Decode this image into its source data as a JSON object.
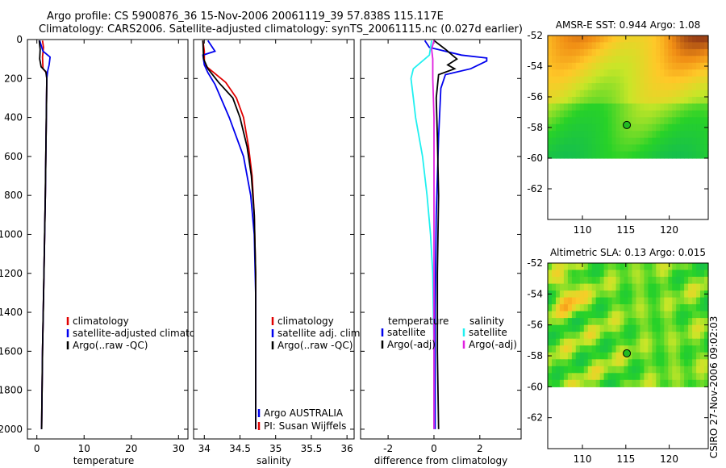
{
  "header": {
    "line1": "Argo profile: CS 5900876_36 15-Nov-2006 20061119_39 57.838S 115.117E",
    "line2": "Climatology: CARS2006. Satellite-adjusted climatology: synTS_20061115.nc (0.027d earlier)"
  },
  "side_label": "CSIRO 27-Nov-2006 09:02:03",
  "colors": {
    "red": "#e00000",
    "blue": "#0000ee",
    "black": "#000000",
    "cyan": "#20f0f0",
    "magenta": "#e020e0"
  },
  "chart_data": [
    {
      "type": "line",
      "id": "temperature",
      "xlabel": "temperature",
      "xlim": [
        -2,
        32
      ],
      "ylim": [
        2050,
        0
      ],
      "xticks": [
        "0",
        "10",
        "20",
        "30"
      ],
      "yticks": [
        "0",
        "200",
        "400",
        "600",
        "800",
        "1000",
        "1200",
        "1400",
        "1600",
        "1800",
        "2000"
      ],
      "legend": [
        "climatology",
        "satellite-adjusted climatolog",
        "Argo(..raw -QC)"
      ],
      "series": [
        {
          "name": "climatology",
          "color": "red",
          "points": [
            [
              1.2,
              5
            ],
            [
              1.4,
              40
            ],
            [
              1.2,
              90
            ],
            [
              1.3,
              150
            ],
            [
              2.0,
              170
            ],
            [
              2.1,
              200
            ],
            [
              2.0,
              400
            ],
            [
              1.8,
              800
            ],
            [
              1.5,
              1200
            ],
            [
              1.2,
              1600
            ],
            [
              1.0,
              2000
            ]
          ]
        },
        {
          "name": "satellite-adjusted",
          "color": "blue",
          "points": [
            [
              0.6,
              5
            ],
            [
              1.3,
              60
            ],
            [
              2.8,
              90
            ],
            [
              2.6,
              130
            ],
            [
              2.3,
              160
            ],
            [
              2.1,
              200
            ],
            [
              2.0,
              400
            ],
            [
              1.8,
              800
            ],
            [
              1.5,
              1200
            ],
            [
              1.2,
              1600
            ],
            [
              1.0,
              2000
            ]
          ]
        },
        {
          "name": "Argo",
          "color": "black",
          "points": [
            [
              0.5,
              5
            ],
            [
              0.7,
              50
            ],
            [
              0.6,
              100
            ],
            [
              0.9,
              140
            ],
            [
              1.9,
              165
            ],
            [
              2.1,
              200
            ],
            [
              2.0,
              400
            ],
            [
              1.8,
              800
            ],
            [
              1.5,
              1200
            ],
            [
              1.2,
              1600
            ],
            [
              1.0,
              2000
            ]
          ]
        }
      ]
    },
    {
      "type": "line",
      "id": "salinity",
      "xlabel": "salinity",
      "xlim": [
        33.85,
        36.1
      ],
      "ylim": [
        2050,
        0
      ],
      "xticks": [
        "34",
        "34.5",
        "35",
        "35.5",
        "36"
      ],
      "legend": [
        "climatology",
        "satellite adj. clim.",
        "Argo(..raw -QC)"
      ],
      "note": [
        "Argo AUSTRALIA",
        "PI: Susan Wijffels"
      ],
      "series": [
        {
          "name": "climatology",
          "color": "red",
          "points": [
            [
              33.98,
              5
            ],
            [
              34.0,
              60
            ],
            [
              34.0,
              130
            ],
            [
              34.1,
              160
            ],
            [
              34.3,
              220
            ],
            [
              34.45,
              300
            ],
            [
              34.55,
              400
            ],
            [
              34.62,
              550
            ],
            [
              34.67,
              700
            ],
            [
              34.7,
              900
            ],
            [
              34.72,
              1200
            ],
            [
              34.72,
              1600
            ],
            [
              34.72,
              2000
            ]
          ]
        },
        {
          "name": "satellite adj. clim.",
          "color": "blue",
          "points": [
            [
              34.05,
              5
            ],
            [
              34.15,
              60
            ],
            [
              33.98,
              80
            ],
            [
              34.0,
              130
            ],
            [
              34.05,
              170
            ],
            [
              34.15,
              230
            ],
            [
              34.35,
              400
            ],
            [
              34.55,
              600
            ],
            [
              34.65,
              800
            ],
            [
              34.7,
              1000
            ],
            [
              34.72,
              1300
            ],
            [
              34.72,
              1600
            ],
            [
              34.72,
              2000
            ]
          ]
        },
        {
          "name": "Argo",
          "color": "black",
          "points": [
            [
              33.98,
              5
            ],
            [
              33.99,
              100
            ],
            [
              34.05,
              150
            ],
            [
              34.2,
              220
            ],
            [
              34.4,
              300
            ],
            [
              34.5,
              400
            ],
            [
              34.6,
              550
            ],
            [
              34.66,
              700
            ],
            [
              34.7,
              900
            ],
            [
              34.72,
              1200
            ],
            [
              34.72,
              1600
            ],
            [
              34.72,
              2000
            ]
          ]
        }
      ]
    },
    {
      "type": "line",
      "id": "difference",
      "xlabel": "difference from climatology",
      "xlim": [
        -3.2,
        3.8
      ],
      "ylim": [
        2050,
        0
      ],
      "xticks": [
        "-2",
        "0",
        "2"
      ],
      "legend_left_title": "temperature",
      "legend_right_title": "salinity",
      "legend_left": [
        "satellite",
        "Argo(-adj)"
      ],
      "legend_right": [
        "satellite",
        "Argo(-adj)"
      ],
      "series": [
        {
          "name": "temp satellite",
          "color": "blue",
          "points": [
            [
              -0.4,
              5
            ],
            [
              -0.2,
              40
            ],
            [
              1.2,
              80
            ],
            [
              2.3,
              95
            ],
            [
              2.3,
              110
            ],
            [
              1.6,
              150
            ],
            [
              0.5,
              180
            ],
            [
              0.3,
              250
            ],
            [
              0.2,
              500
            ],
            [
              0.1,
              900
            ],
            [
              0.05,
              1400
            ],
            [
              0.05,
              2000
            ]
          ]
        },
        {
          "name": "temp Argo",
          "color": "black",
          "points": [
            [
              0.0,
              5
            ],
            [
              0.5,
              50
            ],
            [
              0.8,
              80
            ],
            [
              1.0,
              100
            ],
            [
              0.6,
              130
            ],
            [
              0.9,
              150
            ],
            [
              0.2,
              180
            ],
            [
              0.1,
              300
            ],
            [
              0.15,
              500
            ],
            [
              0.2,
              800
            ],
            [
              0.15,
              1200
            ],
            [
              0.15,
              1600
            ],
            [
              0.2,
              2000
            ]
          ]
        },
        {
          "name": "sal satellite",
          "color": "cyan",
          "points": [
            [
              -0.1,
              5
            ],
            [
              -0.2,
              80
            ],
            [
              -0.9,
              150
            ],
            [
              -1.0,
              200
            ],
            [
              -0.9,
              300
            ],
            [
              -0.8,
              400
            ],
            [
              -0.5,
              600
            ],
            [
              -0.3,
              800
            ],
            [
              -0.15,
              1000
            ],
            [
              -0.05,
              1200
            ],
            [
              0.0,
              1600
            ],
            [
              0.0,
              2000
            ]
          ]
        },
        {
          "name": "sal Argo",
          "color": "magenta",
          "points": [
            [
              0.0,
              5
            ],
            [
              -0.1,
              50
            ],
            [
              -0.05,
              100
            ],
            [
              -0.05,
              200
            ],
            [
              0.0,
              400
            ],
            [
              0.0,
              800
            ],
            [
              0.0,
              1200
            ],
            [
              0.0,
              1600
            ],
            [
              0.0,
              2000
            ]
          ]
        }
      ]
    },
    {
      "type": "heatmap",
      "id": "sst-map",
      "title": "AMSR-E SST: 0.944 Argo: 1.08",
      "xlim": [
        106,
        124.5
      ],
      "ylim": [
        -64,
        -52
      ],
      "xticks": [
        "110",
        "115",
        "120"
      ],
      "yticks": [
        "-52",
        "-54",
        "-56",
        "-58",
        "-60",
        "-62"
      ],
      "data_top": -52,
      "data_bottom": -60,
      "argo_marker": {
        "lon": 115.117,
        "lat": -57.838,
        "color": "#22bb22"
      }
    },
    {
      "type": "heatmap",
      "id": "sla-map",
      "title": "Altimetric SLA: 0.13 Argo: 0.015",
      "xlim": [
        106,
        124.5
      ],
      "ylim": [
        -64,
        -52
      ],
      "xticks": [
        "110",
        "115",
        "120"
      ],
      "yticks": [
        "-52",
        "-54",
        "-56",
        "-58",
        "-60",
        "-62"
      ],
      "data_top": -52,
      "data_bottom": -60,
      "argo_marker": {
        "lon": 115.117,
        "lat": -57.838,
        "color": "#22bb22"
      }
    }
  ]
}
